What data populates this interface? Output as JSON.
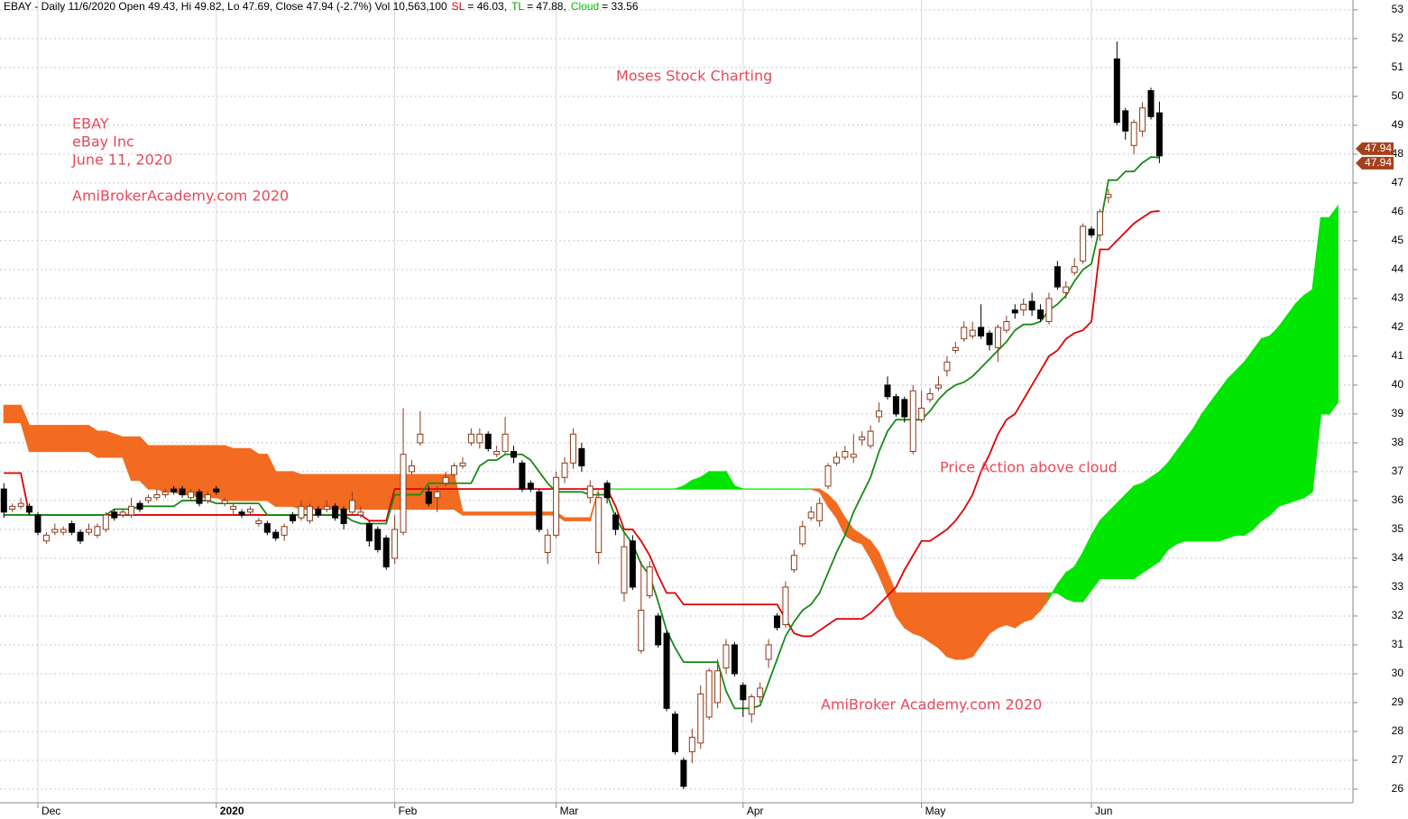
{
  "chart_data": {
    "type": "candlestick",
    "header": [
      "EBAY - Daily 11/6/2020 Open 49.43, Hi 49.82, Lo 47.69, Close 47.94 (-2.7%) Vol 10,563,100",
      "SL",
      "= 46.03,",
      "TL",
      "= 47.88,",
      "Cloud",
      "= 33.56"
    ],
    "header_colors": [
      "#000000",
      "#e00000",
      "#000000",
      "#00a000",
      "#000000",
      "#00c000",
      "#000000"
    ],
    "annotations": [
      "Moses Stock Charting",
      "EBAY",
      "eBay Inc",
      "June 11, 2020",
      "AmiBrokerAcademy.com  2020",
      "Price Action above cloud",
      "AmiBroker Academy.com  2020"
    ],
    "categories": [
      null,
      null,
      null,
      null,
      "Dec",
      null,
      null,
      null,
      null,
      null,
      null,
      null,
      null,
      null,
      null,
      null,
      null,
      null,
      null,
      null,
      null,
      null,
      null,
      null,
      null,
      "2020",
      null,
      null,
      null,
      null,
      null,
      null,
      null,
      null,
      null,
      null,
      null,
      null,
      null,
      null,
      null,
      null,
      null,
      null,
      null,
      null,
      "Feb",
      null,
      null,
      null,
      null,
      null,
      null,
      null,
      null,
      null,
      null,
      null,
      null,
      null,
      null,
      null,
      null,
      null,
      null,
      "Mar",
      null,
      null,
      null,
      null,
      null,
      null,
      null,
      null,
      null,
      null,
      null,
      null,
      null,
      null,
      null,
      null,
      null,
      null,
      null,
      null,
      null,
      "Apr",
      null,
      null,
      null,
      null,
      null,
      null,
      null,
      null,
      null,
      null,
      null,
      null,
      null,
      null,
      null,
      null,
      null,
      null,
      null,
      null,
      "May",
      null,
      null,
      null,
      null,
      null,
      null,
      null,
      null,
      null,
      null,
      null,
      null,
      null,
      null,
      null,
      null,
      null,
      null,
      null,
      "Jun",
      null,
      null,
      null,
      null,
      null,
      null,
      null,
      null,
      null,
      null,
      null,
      null,
      null,
      null,
      null,
      null,
      null,
      null,
      null,
      null,
      null,
      null,
      null,
      null,
      null,
      null,
      null,
      null,
      null
    ],
    "open": [
      36.4,
      35.7,
      35.8,
      35.8,
      35.5,
      34.6,
      34.9,
      34.9,
      35.2,
      34.9,
      34.9,
      34.8,
      35.0,
      35.6,
      35.5,
      35.5,
      35.9,
      36.0,
      36.1,
      36.2,
      36.4,
      36.4,
      36.1,
      36.3,
      36.0,
      36.4,
      35.9,
      35.7,
      35.6,
      35.6,
      35.2,
      35.2,
      34.9,
      34.8,
      35.5,
      35.4,
      35.3,
      35.7,
      35.7,
      35.8,
      35.7,
      35.6,
      35.5,
      35.2,
      35.0,
      34.7,
      34.0,
      34.9,
      37.0,
      38.0,
      36.3,
      36.1,
      36.6,
      36.9,
      37.2,
      38.0,
      38.0,
      38.3,
      37.6,
      37.7,
      37.7,
      37.3,
      36.6,
      36.3,
      34.2,
      34.8,
      36.8,
      37.3,
      37.8,
      36.1,
      34.2,
      36.6,
      35.5,
      32.8,
      34.6,
      30.8,
      32.7,
      32.0,
      31.4,
      28.6,
      27.0,
      27.3,
      27.6,
      28.5,
      29.0,
      30.2,
      31.0,
      29.6,
      28.6,
      29.2,
      30.5,
      32.0,
      31.7,
      33.6,
      34.5,
      35.4,
      35.3,
      36.5,
      37.3,
      37.5,
      37.5,
      38.1,
      37.9,
      38.9,
      40.0,
      39.6,
      39.5,
      37.7,
      38.8,
      39.5,
      39.9,
      40.5,
      41.2,
      41.6,
      41.7,
      42.0,
      41.8,
      41.3,
      41.9,
      42.6,
      42.6,
      42.9,
      42.6,
      42.2,
      44.1,
      43.2,
      43.9,
      44.3,
      45.4,
      45.2,
      46.5,
      51.3,
      49.5,
      48.3,
      48.8,
      50.2,
      49.43,
      null,
      null,
      null,
      null,
      null,
      null,
      null,
      null,
      null,
      null,
      null,
      null,
      null,
      null,
      null,
      null,
      null,
      null,
      null,
      null,
      null
    ],
    "high": [
      36.6,
      35.9,
      36.1,
      35.9,
      35.6,
      34.9,
      35.2,
      35.1,
      35.3,
      35.0,
      35.2,
      35.2,
      35.6,
      35.7,
      35.7,
      36.1,
      36.0,
      36.2,
      36.4,
      36.4,
      36.5,
      36.5,
      36.4,
      36.4,
      36.3,
      36.5,
      36.1,
      35.9,
      35.7,
      35.8,
      35.4,
      35.3,
      35.0,
      35.2,
      35.6,
      36.0,
      35.9,
      35.8,
      36.0,
      35.9,
      35.8,
      36.3,
      35.8,
      35.3,
      35.1,
      34.8,
      35.5,
      39.2,
      37.4,
      39.1,
      36.5,
      36.5,
      37.0,
      37.3,
      37.5,
      38.5,
      38.5,
      38.4,
      37.9,
      38.9,
      37.9,
      37.4,
      36.7,
      36.4,
      35.0,
      37.0,
      37.5,
      38.5,
      38.0,
      36.7,
      36.3,
      36.7,
      35.6,
      34.9,
      34.8,
      33.9,
      33.9,
      32.1,
      31.5,
      28.7,
      27.1,
      28.1,
      29.6,
      30.2,
      30.5,
      31.2,
      31.1,
      29.7,
      29.3,
      29.7,
      31.2,
      32.1,
      33.2,
      34.3,
      35.3,
      35.8,
      36.1,
      37.3,
      37.7,
      37.9,
      38.3,
      38.4,
      38.6,
      39.4,
      40.3,
      39.7,
      39.6,
      40.0,
      39.8,
      39.9,
      40.3,
      41.0,
      41.5,
      42.2,
      42.2,
      42.8,
      41.9,
      42.1,
      42.4,
      42.8,
      43.0,
      43.2,
      42.8,
      43.2,
      44.3,
      43.6,
      44.4,
      45.6,
      45.5,
      46.1,
      46.8,
      51.9,
      49.6,
      49.2,
      49.8,
      50.3,
      49.82,
      null,
      null,
      null,
      null,
      null,
      null,
      null,
      null,
      null,
      null,
      null,
      null,
      null,
      null,
      null,
      null,
      null,
      null,
      null,
      null,
      null
    ],
    "low": [
      35.4,
      35.6,
      35.7,
      35.5,
      34.8,
      34.5,
      34.8,
      34.8,
      34.8,
      34.5,
      34.8,
      34.7,
      34.9,
      35.3,
      35.4,
      35.4,
      35.6,
      35.9,
      36.0,
      36.1,
      36.2,
      36.1,
      36.0,
      35.8,
      35.9,
      36.2,
      35.8,
      35.5,
      35.4,
      35.5,
      35.1,
      34.8,
      34.6,
      34.6,
      35.2,
      35.3,
      35.2,
      35.4,
      35.6,
      35.3,
      35.0,
      35.5,
      35.4,
      34.4,
      34.2,
      33.6,
      33.8,
      34.8,
      36.9,
      37.9,
      35.8,
      35.6,
      36.5,
      36.8,
      37.1,
      37.9,
      37.8,
      37.7,
      37.5,
      37.6,
      37.3,
      36.3,
      36.3,
      34.9,
      33.8,
      34.7,
      36.6,
      37.1,
      37.0,
      35.9,
      33.8,
      35.9,
      34.8,
      32.5,
      32.9,
      30.7,
      32.6,
      30.9,
      28.7,
      27.2,
      26.0,
      26.9,
      27.4,
      28.4,
      28.8,
      30.0,
      29.9,
      28.5,
      28.3,
      29.0,
      30.2,
      31.5,
      31.6,
      33.5,
      34.4,
      35.3,
      35.1,
      36.4,
      37.2,
      37.4,
      37.3,
      37.9,
      37.8,
      38.7,
      39.5,
      38.9,
      38.7,
      37.6,
      38.7,
      39.4,
      39.8,
      40.3,
      41.1,
      41.5,
      41.6,
      41.6,
      41.2,
      40.8,
      41.8,
      42.3,
      42.4,
      42.4,
      42.2,
      42.1,
      43.3,
      43.0,
      43.8,
      44.2,
      45.1,
      45.0,
      46.3,
      49.0,
      48.5,
      48.0,
      48.6,
      49.2,
      47.69,
      null,
      null,
      null,
      null,
      null,
      null,
      null,
      null,
      null,
      null,
      null,
      null,
      null,
      null,
      null,
      null,
      null,
      null,
      null,
      null,
      null
    ],
    "close": [
      35.6,
      35.8,
      35.9,
      35.6,
      34.9,
      34.8,
      35.0,
      35.0,
      34.9,
      34.6,
      35.0,
      35.1,
      35.5,
      35.4,
      35.6,
      35.8,
      35.7,
      36.1,
      36.2,
      36.3,
      36.3,
      36.2,
      36.3,
      35.9,
      36.2,
      36.3,
      36.0,
      35.8,
      35.5,
      35.7,
      35.3,
      34.9,
      34.7,
      35.1,
      35.3,
      35.8,
      35.8,
      35.5,
      35.8,
      35.4,
      35.2,
      36.0,
      35.6,
      34.6,
      34.3,
      33.7,
      35.0,
      37.6,
      37.2,
      38.3,
      35.9,
      36.3,
      36.8,
      37.2,
      37.3,
      38.3,
      38.3,
      37.8,
      37.7,
      38.3,
      37.5,
      36.4,
      36.4,
      35.0,
      34.8,
      36.8,
      37.3,
      38.3,
      37.2,
      36.5,
      36.1,
      36.1,
      35.0,
      34.4,
      33.0,
      32.2,
      33.7,
      31.0,
      28.8,
      27.3,
      26.1,
      27.8,
      29.3,
      30.1,
      30.1,
      31.0,
      30.0,
      29.1,
      29.2,
      29.5,
      31.0,
      31.6,
      33.0,
      34.1,
      35.1,
      35.6,
      35.9,
      37.2,
      37.5,
      37.7,
      37.6,
      38.2,
      38.4,
      39.1,
      39.6,
      39.0,
      38.9,
      39.8,
      39.2,
      39.7,
      40.0,
      40.8,
      41.3,
      42.0,
      41.9,
      41.7,
      41.4,
      42.0,
      42.2,
      42.5,
      42.8,
      42.6,
      42.3,
      43.0,
      43.4,
      43.4,
      44.1,
      45.5,
      45.2,
      46.0,
      46.6,
      49.1,
      48.8,
      49.1,
      49.6,
      49.3,
      47.94,
      null,
      null,
      null,
      null,
      null,
      null,
      null,
      null,
      null,
      null,
      null,
      null,
      null,
      null,
      null,
      null,
      null,
      null,
      null,
      null,
      null
    ],
    "tl": [
      35.5,
      35.5,
      35.5,
      35.5,
      35.5,
      35.5,
      35.5,
      35.5,
      35.5,
      35.5,
      35.5,
      35.5,
      35.5,
      35.7,
      35.7,
      35.7,
      35.8,
      35.8,
      35.8,
      35.8,
      35.8,
      36.0,
      36.0,
      36.0,
      36.0,
      35.9,
      35.9,
      35.9,
      35.9,
      35.9,
      35.9,
      35.5,
      35.5,
      35.5,
      35.5,
      35.5,
      35.5,
      35.5,
      35.5,
      35.5,
      35.5,
      35.3,
      35.2,
      35.2,
      35.2,
      35.2,
      36.2,
      36.2,
      36.2,
      36.2,
      36.6,
      36.6,
      36.6,
      36.6,
      36.6,
      36.6,
      37.2,
      37.4,
      37.4,
      37.6,
      37.6,
      37.6,
      37.4,
      37.0,
      36.6,
      36.3,
      36.3,
      36.3,
      36.3,
      36.2,
      36.2,
      36.2,
      35.4,
      34.9,
      34.5,
      33.8,
      33.4,
      32.5,
      31.5,
      30.9,
      30.4,
      30.4,
      30.4,
      30.4,
      30.4,
      29.4,
      28.8,
      28.8,
      28.8,
      28.9,
      29.7,
      30.5,
      31.3,
      31.8,
      32.2,
      32.4,
      32.8,
      33.5,
      34.2,
      34.8,
      35.6,
      36.2,
      36.8,
      37.7,
      38.4,
      38.8,
      38.8,
      38.8,
      38.8,
      39.1,
      39.5,
      39.8,
      40.0,
      40.1,
      40.3,
      40.6,
      40.9,
      41.2,
      41.5,
      41.9,
      42.1,
      42.1,
      42.2,
      42.6,
      42.8,
      43.1,
      43.6,
      44.0,
      44.2,
      45.5,
      47.1,
      47.1,
      47.4,
      47.4,
      47.7,
      47.9,
      47.88,
      null,
      null,
      null,
      null,
      null,
      null,
      null,
      null,
      null,
      null,
      null,
      null,
      null,
      null,
      null,
      null,
      null,
      null,
      null,
      null,
      null
    ],
    "sl": [
      36.95,
      36.95,
      36.95,
      35.5,
      35.5,
      35.5,
      35.5,
      35.5,
      35.5,
      35.5,
      35.5,
      35.5,
      35.5,
      35.5,
      35.5,
      35.5,
      35.5,
      35.5,
      35.5,
      35.5,
      35.5,
      35.5,
      35.5,
      35.5,
      35.5,
      35.5,
      35.5,
      35.5,
      35.5,
      35.5,
      35.5,
      35.5,
      35.5,
      35.5,
      35.5,
      35.5,
      35.5,
      35.5,
      35.5,
      35.5,
      35.5,
      35.5,
      35.5,
      35.3,
      35.3,
      35.3,
      36.4,
      36.4,
      36.4,
      36.4,
      36.4,
      36.4,
      36.4,
      36.4,
      36.4,
      36.4,
      36.4,
      36.4,
      36.4,
      36.4,
      36.4,
      36.4,
      36.4,
      36.4,
      36.4,
      36.4,
      36.4,
      36.4,
      36.4,
      36.4,
      36.4,
      36.4,
      35.8,
      35.0,
      35.0,
      34.6,
      34.1,
      33.4,
      32.8,
      32.8,
      32.4,
      32.4,
      32.4,
      32.4,
      32.4,
      32.4,
      32.4,
      32.4,
      32.4,
      32.4,
      32.4,
      32.4,
      31.9,
      31.4,
      31.3,
      31.3,
      31.5,
      31.7,
      31.9,
      31.9,
      31.9,
      31.9,
      32.1,
      32.4,
      32.7,
      33.0,
      33.6,
      34.1,
      34.6,
      34.6,
      34.8,
      35.0,
      35.3,
      35.7,
      36.2,
      37.0,
      37.6,
      38.3,
      38.8,
      39.0,
      39.5,
      40.0,
      40.5,
      41.0,
      41.2,
      41.6,
      41.8,
      41.9,
      42.2,
      44.7,
      44.7,
      45.0,
      45.3,
      45.6,
      45.8,
      46.0,
      46.03,
      null,
      null,
      null,
      null,
      null,
      null,
      null,
      null,
      null,
      null,
      null,
      null,
      null,
      null,
      null,
      null,
      null,
      null,
      null,
      null,
      null
    ],
    "span_a": [
      38.7,
      38.7,
      38.7,
      37.7,
      37.7,
      37.7,
      37.7,
      37.7,
      37.7,
      37.7,
      37.7,
      37.5,
      37.5,
      37.5,
      37.5,
      36.7,
      36.7,
      36.4,
      36.4,
      36.3,
      36.3,
      36.2,
      36.2,
      36.1,
      36.1,
      36.1,
      36.0,
      36.0,
      36.0,
      36.0,
      36.0,
      36.0,
      35.8,
      35.8,
      35.8,
      35.7,
      35.7,
      35.7,
      35.7,
      35.7,
      35.7,
      35.7,
      35.7,
      35.7,
      35.7,
      35.7,
      35.7,
      35.7,
      35.7,
      35.7,
      35.7,
      35.7,
      35.7,
      35.7,
      35.5,
      35.5,
      35.5,
      35.5,
      35.5,
      35.5,
      35.5,
      35.5,
      35.5,
      35.5,
      35.5,
      35.5,
      35.3,
      35.3,
      35.3,
      35.3,
      36.4,
      36.4,
      36.4,
      36.4,
      36.4,
      36.4,
      36.4,
      36.4,
      36.4,
      36.4,
      36.5,
      36.7,
      36.8,
      37.0,
      37.0,
      37.0,
      36.5,
      36.4,
      36.4,
      36.4,
      36.4,
      36.4,
      36.4,
      36.4,
      36.4,
      36.4,
      36.3,
      35.8,
      35.4,
      34.8,
      34.6,
      34.5,
      34.0,
      33.4,
      32.7,
      32.0,
      31.6,
      31.4,
      31.3,
      31.1,
      30.9,
      30.6,
      30.5,
      30.5,
      30.6,
      31.0,
      31.4,
      31.6,
      31.7,
      31.6,
      31.8,
      31.9,
      32.2,
      32.6,
      33.1,
      33.5,
      33.7,
      34.2,
      34.8,
      35.3,
      35.6,
      35.9,
      36.2,
      36.5,
      36.6,
      36.8,
      37.0,
      37.3,
      37.7,
      38.1,
      38.5,
      39.0,
      39.4,
      39.8,
      40.2,
      40.5,
      40.8,
      41.2,
      41.6,
      41.7,
      42.0,
      42.4,
      42.8,
      43.1,
      43.3,
      45.8,
      45.8,
      46.2
    ],
    "span_b": [
      39.3,
      39.3,
      39.3,
      38.6,
      38.6,
      38.6,
      38.6,
      38.6,
      38.6,
      38.6,
      38.6,
      38.4,
      38.4,
      38.3,
      38.2,
      38.2,
      38.2,
      37.9,
      37.9,
      37.9,
      37.9,
      37.9,
      37.9,
      37.9,
      37.9,
      37.9,
      37.9,
      37.8,
      37.8,
      37.8,
      37.6,
      37.6,
      37.0,
      37.0,
      37.0,
      36.9,
      36.9,
      36.9,
      36.9,
      36.9,
      36.9,
      36.9,
      36.9,
      36.9,
      36.9,
      36.9,
      36.9,
      36.9,
      36.9,
      36.9,
      36.9,
      36.9,
      36.9,
      36.9,
      35.6,
      35.6,
      35.6,
      35.6,
      35.6,
      35.6,
      35.6,
      35.6,
      35.6,
      35.6,
      35.6,
      35.6,
      35.4,
      35.4,
      35.4,
      35.4,
      36.4,
      36.4,
      36.4,
      36.4,
      36.4,
      36.4,
      36.4,
      36.4,
      36.4,
      36.4,
      36.4,
      36.4,
      36.4,
      36.4,
      36.4,
      36.4,
      36.4,
      36.4,
      36.4,
      36.4,
      36.4,
      36.4,
      36.4,
      36.4,
      36.4,
      36.4,
      36.4,
      36.2,
      35.9,
      35.4,
      35.0,
      34.8,
      34.6,
      34.2,
      33.5,
      32.8,
      32.8,
      32.8,
      32.8,
      32.8,
      32.8,
      32.8,
      32.8,
      32.8,
      32.8,
      32.8,
      32.8,
      32.8,
      32.8,
      32.8,
      32.8,
      32.8,
      32.8,
      32.8,
      32.8,
      32.6,
      32.5,
      32.5,
      32.9,
      33.3,
      33.3,
      33.3,
      33.3,
      33.3,
      33.5,
      33.7,
      33.9,
      34.3,
      34.5,
      34.6,
      34.6,
      34.6,
      34.6,
      34.6,
      34.7,
      34.8,
      34.8,
      35.0,
      35.3,
      35.5,
      35.8,
      35.9,
      36.0,
      36.1,
      36.3,
      39.0,
      39.0,
      39.4
    ],
    "price_tags": [
      47.94,
      47.94
    ],
    "up_color": "#8b3a1a",
    "down_color": "#000000",
    "tl_color": "#178a17",
    "sl_color": "#e00000",
    "cloud_up_color": "#00e600",
    "cloud_down_color": "#f26b21",
    "tag_color": "#a4401c",
    "ylim": [
      25.53,
      53.34
    ],
    "yticks": [
      26,
      27,
      28,
      29,
      30,
      31,
      32,
      33,
      34,
      35,
      36,
      37,
      38,
      39,
      40,
      41,
      42,
      43,
      44,
      45,
      46,
      47,
      48,
      49,
      50,
      51,
      52,
      53
    ],
    "grid": true
  }
}
